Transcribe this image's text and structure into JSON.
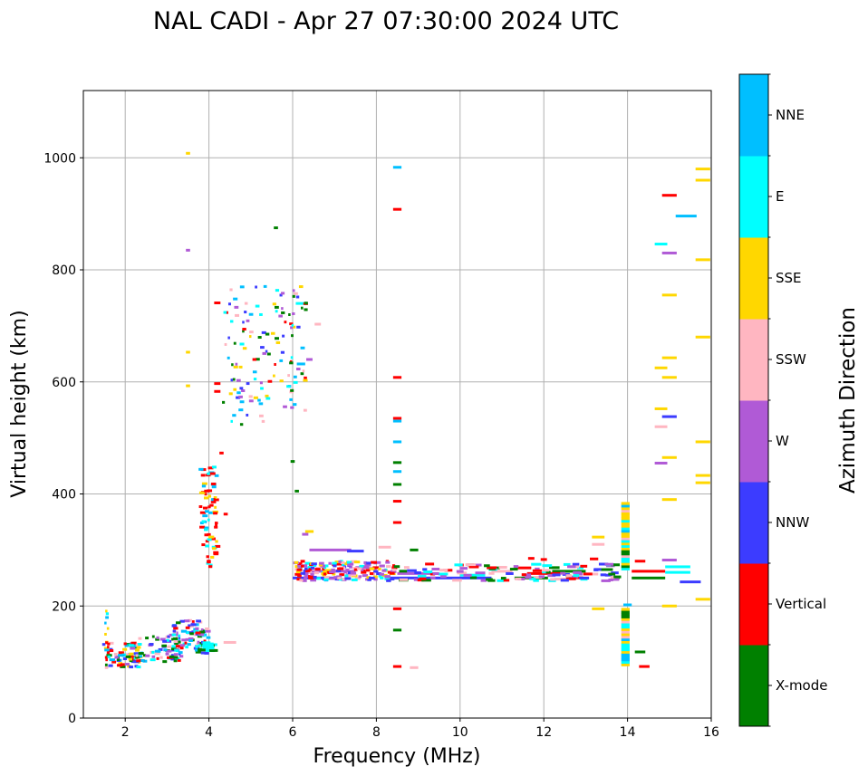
{
  "chart_data": {
    "type": "scatter",
    "title": "NAL CADI - Apr 27 07:30:00 2024 UTC",
    "xlabel": "Frequency (MHz)",
    "ylabel": "Virtual height (km)",
    "xlim": [
      1,
      16
    ],
    "ylim": [
      0,
      1120
    ],
    "grid": true,
    "xticks": [
      2,
      4,
      6,
      8,
      10,
      12,
      14,
      16
    ],
    "yticks": [
      0,
      200,
      400,
      600,
      800,
      1000
    ],
    "colorbar": {
      "title": "Azimuth Direction",
      "categories": [
        {
          "label": "X-mode",
          "color": "#008000"
        },
        {
          "label": "Vertical",
          "color": "#ff0000"
        },
        {
          "label": "NNW",
          "color": "#3c3cff"
        },
        {
          "label": "W",
          "color": "#b05ad6"
        },
        {
          "label": "SSW",
          "color": "#ffb6c1"
        },
        {
          "label": "SSE",
          "color": "#ffd700"
        },
        {
          "label": "E",
          "color": "#00ffff"
        },
        {
          "label": "NNE",
          "color": "#00bfff"
        }
      ]
    },
    "streaks": [
      {
        "x": 8.5,
        "y": 983,
        "w": 0.2,
        "c": "NNE"
      },
      {
        "x": 8.5,
        "y": 908,
        "w": 0.2,
        "c": "Vertical"
      },
      {
        "x": 8.5,
        "y": 608,
        "w": 0.2,
        "c": "Vertical"
      },
      {
        "x": 8.5,
        "y": 535,
        "w": 0.2,
        "c": "Vertical"
      },
      {
        "x": 8.5,
        "y": 530,
        "w": 0.2,
        "c": "NNE"
      },
      {
        "x": 8.5,
        "y": 493,
        "w": 0.2,
        "c": "NNE"
      },
      {
        "x": 8.5,
        "y": 456,
        "w": 0.2,
        "c": "X-mode"
      },
      {
        "x": 8.5,
        "y": 440,
        "w": 0.2,
        "c": "NNE"
      },
      {
        "x": 8.5,
        "y": 417,
        "w": 0.2,
        "c": "X-mode"
      },
      {
        "x": 8.5,
        "y": 387,
        "w": 0.2,
        "c": "Vertical"
      },
      {
        "x": 8.5,
        "y": 349,
        "w": 0.2,
        "c": "Vertical"
      },
      {
        "x": 8.5,
        "y": 195,
        "w": 0.2,
        "c": "Vertical"
      },
      {
        "x": 8.5,
        "y": 157,
        "w": 0.2,
        "c": "X-mode"
      },
      {
        "x": 8.5,
        "y": 92,
        "w": 0.2,
        "c": "Vertical"
      },
      {
        "x": 8.9,
        "y": 90,
        "w": 0.2,
        "c": "SSW"
      },
      {
        "x": 15.8,
        "y": 980,
        "w": 0.35,
        "c": "SSE"
      },
      {
        "x": 15.8,
        "y": 960,
        "w": 0.35,
        "c": "SSE"
      },
      {
        "x": 15.8,
        "y": 818,
        "w": 0.35,
        "c": "SSE"
      },
      {
        "x": 15.8,
        "y": 680,
        "w": 0.35,
        "c": "SSE"
      },
      {
        "x": 15.8,
        "y": 493,
        "w": 0.35,
        "c": "SSE"
      },
      {
        "x": 15.8,
        "y": 433,
        "w": 0.35,
        "c": "SSE"
      },
      {
        "x": 15.8,
        "y": 420,
        "w": 0.35,
        "c": "SSE"
      },
      {
        "x": 15.8,
        "y": 212,
        "w": 0.35,
        "c": "SSE"
      },
      {
        "x": 15.0,
        "y": 933,
        "w": 0.35,
        "c": "Vertical"
      },
      {
        "x": 15.4,
        "y": 896,
        "w": 0.5,
        "c": "NNE"
      },
      {
        "x": 14.8,
        "y": 846,
        "w": 0.3,
        "c": "E"
      },
      {
        "x": 15.0,
        "y": 830,
        "w": 0.35,
        "c": "W"
      },
      {
        "x": 15.0,
        "y": 755,
        "w": 0.35,
        "c": "SSE"
      },
      {
        "x": 14.8,
        "y": 625,
        "w": 0.3,
        "c": "SSE"
      },
      {
        "x": 15.0,
        "y": 643,
        "w": 0.35,
        "c": "SSE"
      },
      {
        "x": 15.0,
        "y": 608,
        "w": 0.35,
        "c": "SSE"
      },
      {
        "x": 14.8,
        "y": 552,
        "w": 0.3,
        "c": "SSE"
      },
      {
        "x": 15.0,
        "y": 538,
        "w": 0.35,
        "c": "NNW"
      },
      {
        "x": 14.8,
        "y": 520,
        "w": 0.3,
        "c": "SSW"
      },
      {
        "x": 15.0,
        "y": 465,
        "w": 0.35,
        "c": "SSE"
      },
      {
        "x": 14.8,
        "y": 455,
        "w": 0.3,
        "c": "W"
      },
      {
        "x": 15.0,
        "y": 390,
        "w": 0.35,
        "c": "SSE"
      },
      {
        "x": 15.0,
        "y": 200,
        "w": 0.35,
        "c": "SSE"
      },
      {
        "x": 13.3,
        "y": 323,
        "w": 0.3,
        "c": "SSE"
      },
      {
        "x": 13.3,
        "y": 310,
        "w": 0.3,
        "c": "SSW"
      },
      {
        "x": 13.3,
        "y": 195,
        "w": 0.3,
        "c": "SSE"
      },
      {
        "x": 14.4,
        "y": 92,
        "w": 0.25,
        "c": "Vertical"
      },
      {
        "x": 14.3,
        "y": 118,
        "w": 0.25,
        "c": "X-mode"
      },
      {
        "x": 14.0,
        "y": 202,
        "w": 0.2,
        "c": "NNE"
      },
      {
        "x": 14.3,
        "y": 280,
        "w": 0.25,
        "c": "Vertical"
      },
      {
        "x": 6.4,
        "y": 333,
        "w": 0.2,
        "c": "SSE"
      },
      {
        "x": 6.3,
        "y": 328,
        "w": 0.15,
        "c": "W"
      },
      {
        "x": 6.1,
        "y": 405,
        "w": 0.1,
        "c": "X-mode"
      },
      {
        "x": 6.0,
        "y": 458,
        "w": 0.1,
        "c": "X-mode"
      },
      {
        "x": 5.6,
        "y": 875,
        "w": 0.1,
        "c": "X-mode"
      },
      {
        "x": 3.5,
        "y": 1008,
        "w": 0.1,
        "c": "SSE"
      },
      {
        "x": 3.5,
        "y": 835,
        "w": 0.1,
        "c": "W"
      },
      {
        "x": 3.5,
        "y": 653,
        "w": 0.1,
        "c": "SSE"
      },
      {
        "x": 3.5,
        "y": 593,
        "w": 0.1,
        "c": "SSE"
      },
      {
        "x": 4.2,
        "y": 741,
        "w": 0.15,
        "c": "Vertical"
      },
      {
        "x": 4.2,
        "y": 597,
        "w": 0.15,
        "c": "Vertical"
      },
      {
        "x": 4.2,
        "y": 583,
        "w": 0.15,
        "c": "Vertical"
      },
      {
        "x": 4.3,
        "y": 473,
        "w": 0.1,
        "c": "Vertical"
      },
      {
        "x": 4.4,
        "y": 364,
        "w": 0.1,
        "c": "Vertical"
      },
      {
        "x": 4.5,
        "y": 135,
        "w": 0.3,
        "c": "SSW"
      },
      {
        "x": 6.2,
        "y": 770,
        "w": 0.1,
        "c": "SSE"
      },
      {
        "x": 6.2,
        "y": 740,
        "w": 0.25,
        "c": "E"
      },
      {
        "x": 6.2,
        "y": 632,
        "w": 0.2,
        "c": "NNE"
      },
      {
        "x": 6.4,
        "y": 640,
        "w": 0.15,
        "c": "W"
      },
      {
        "x": 6.6,
        "y": 703,
        "w": 0.15,
        "c": "SSW"
      },
      {
        "x": 6.9,
        "y": 300,
        "w": 1.0,
        "c": "W"
      },
      {
        "x": 8.2,
        "y": 305,
        "w": 0.3,
        "c": "SSW"
      },
      {
        "x": 8.9,
        "y": 300,
        "w": 0.2,
        "c": "X-mode"
      },
      {
        "x": 7.5,
        "y": 298,
        "w": 0.4,
        "c": "NNW"
      },
      {
        "x": 14.5,
        "y": 250,
        "w": 0.8,
        "c": "X-mode"
      },
      {
        "x": 14.5,
        "y": 262,
        "w": 0.8,
        "c": "Vertical"
      },
      {
        "x": 15.2,
        "y": 270,
        "w": 0.6,
        "c": "E"
      },
      {
        "x": 15.2,
        "y": 260,
        "w": 0.6,
        "c": "E"
      },
      {
        "x": 15.0,
        "y": 282,
        "w": 0.35,
        "c": "W"
      },
      {
        "x": 15.5,
        "y": 243,
        "w": 0.5,
        "c": "NNW"
      },
      {
        "x": 6.5,
        "y": 250,
        "w": 1.0,
        "c": "NNW"
      },
      {
        "x": 9.5,
        "y": 250,
        "w": 2.5,
        "c": "NNW"
      },
      {
        "x": 9.0,
        "y": 258,
        "w": 1.0,
        "c": "W"
      },
      {
        "x": 10.3,
        "y": 255,
        "w": 0.6,
        "c": "E"
      },
      {
        "x": 11.7,
        "y": 250,
        "w": 0.8,
        "c": "X-mode"
      },
      {
        "x": 12.6,
        "y": 262,
        "w": 0.8,
        "c": "X-mode"
      },
      {
        "x": 13.0,
        "y": 257,
        "w": 0.6,
        "c": "SSW"
      },
      {
        "x": 11.0,
        "y": 262,
        "w": 0.5,
        "c": "SSW"
      },
      {
        "x": 12.0,
        "y": 258,
        "w": 0.8,
        "c": "Vertical"
      },
      {
        "x": 11.5,
        "y": 268,
        "w": 0.4,
        "c": "Vertical"
      },
      {
        "x": 12.5,
        "y": 248,
        "w": 0.5,
        "c": "SSW"
      },
      {
        "x": 13.2,
        "y": 284,
        "w": 0.2,
        "c": "Vertical"
      },
      {
        "x": 12.0,
        "y": 283,
        "w": 0.15,
        "c": "Vertical"
      },
      {
        "x": 11.7,
        "y": 285,
        "w": 0.15,
        "c": "Vertical"
      },
      {
        "x": 13.5,
        "y": 265,
        "w": 0.3,
        "c": "X-mode"
      },
      {
        "x": 10.8,
        "y": 268,
        "w": 0.3,
        "c": "X-mode"
      },
      {
        "x": 6.9,
        "y": 262,
        "w": 1.2,
        "c": "W"
      }
    ]
  }
}
